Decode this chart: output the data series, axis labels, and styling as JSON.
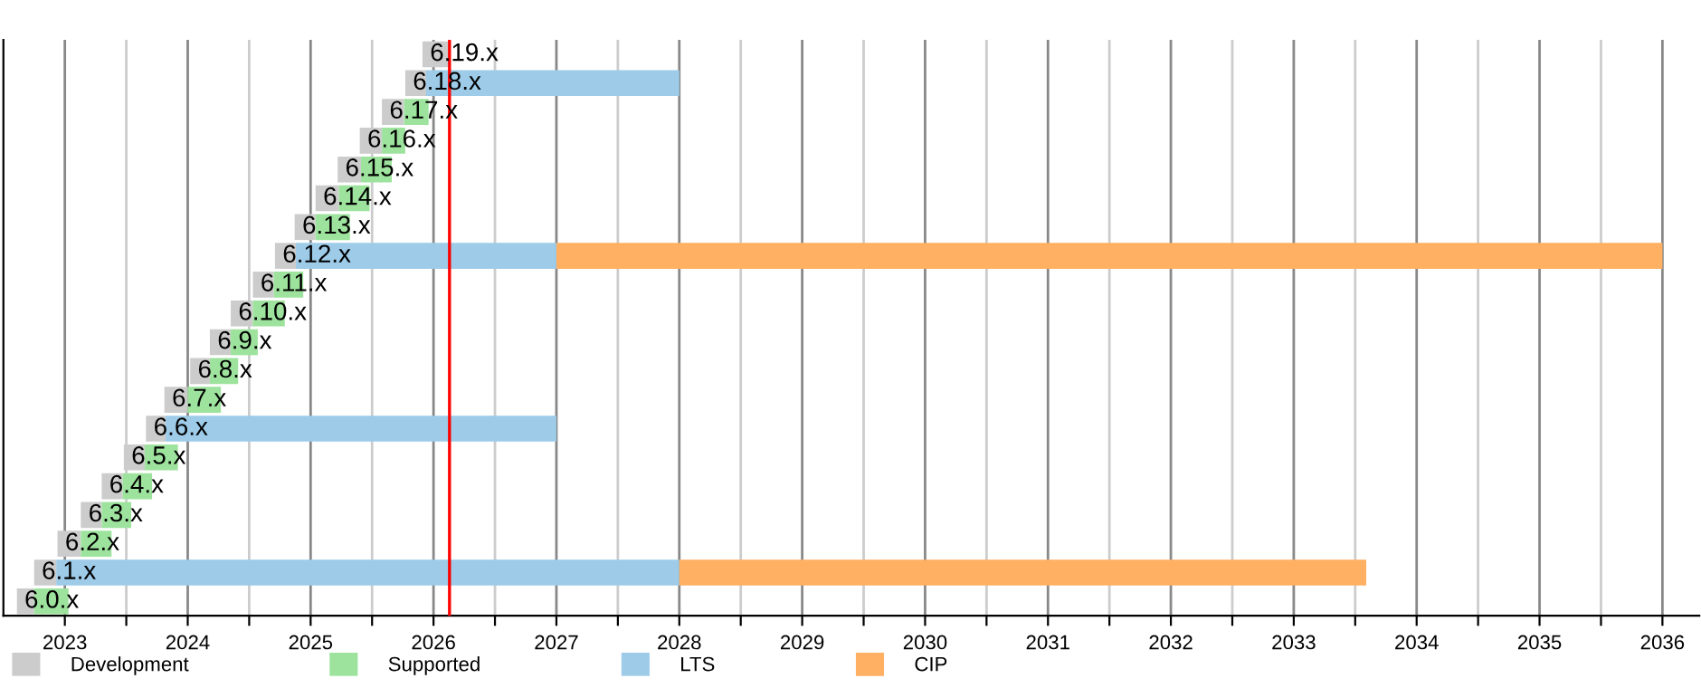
{
  "chart_data": {
    "type": "bar",
    "orientation": "horizontal",
    "categories": [
      "6.19.x",
      "6.18.x",
      "6.17.x",
      "6.16.x",
      "6.15.x",
      "6.14.x",
      "6.13.x",
      "6.12.x",
      "6.11.x",
      "6.10.x",
      "6.9.x",
      "6.8.x",
      "6.7.x",
      "6.6.x",
      "6.5.x",
      "6.4.x",
      "6.3.x",
      "6.2.x",
      "6.1.x",
      "6.0.x"
    ],
    "series": [
      {
        "name": "Development",
        "color": "#cccccc",
        "base": [
          2025.91,
          2025.77,
          2025.58,
          2025.4,
          2025.22,
          2025.04,
          2024.87,
          2024.71,
          2024.53,
          2024.35,
          2024.18,
          2024.02,
          2023.81,
          2023.66,
          2023.48,
          2023.3,
          2023.13,
          2022.94,
          2022.75,
          2022.61
        ],
        "values": [
          0.21,
          0.17,
          0.18,
          0.18,
          0.19,
          0.19,
          0.17,
          0.17,
          0.17,
          0.18,
          0.17,
          0.16,
          0.19,
          0.16,
          0.17,
          0.17,
          0.17,
          0.19,
          0.18,
          0.14
        ]
      },
      {
        "name": "Supported",
        "color": "#9de39d",
        "base": [
          null,
          null,
          2025.76,
          2025.58,
          2025.41,
          2025.23,
          2025.04,
          null,
          2024.7,
          2024.53,
          2024.35,
          2024.18,
          2024.0,
          null,
          2023.65,
          2023.47,
          2023.3,
          2023.13,
          null,
          2022.75
        ],
        "values": [
          null,
          null,
          0.2,
          0.19,
          0.25,
          0.25,
          0.28,
          null,
          0.24,
          0.26,
          0.22,
          0.23,
          0.27,
          null,
          0.27,
          0.24,
          0.24,
          0.25,
          null,
          0.28
        ]
      },
      {
        "name": "LTS",
        "color": "#9dcbe8",
        "base": [
          null,
          2025.94,
          null,
          null,
          null,
          null,
          null,
          2024.88,
          null,
          null,
          null,
          null,
          null,
          2023.82,
          null,
          null,
          null,
          null,
          2022.93,
          null
        ],
        "values": [
          null,
          2.06,
          null,
          null,
          null,
          null,
          null,
          2.12,
          null,
          null,
          null,
          null,
          null,
          3.18,
          null,
          null,
          null,
          null,
          5.07,
          null
        ]
      },
      {
        "name": "CIP",
        "color": "#ffb062",
        "base": [
          null,
          null,
          null,
          null,
          null,
          null,
          null,
          2027.0,
          null,
          null,
          null,
          null,
          null,
          null,
          null,
          null,
          null,
          null,
          2028.0,
          null
        ],
        "values": [
          null,
          null,
          null,
          null,
          null,
          null,
          null,
          9.0,
          null,
          null,
          null,
          null,
          null,
          null,
          null,
          null,
          null,
          null,
          5.59,
          null
        ]
      }
    ],
    "xlim": [
      2022.5,
      2036.3
    ],
    "xticks": [
      2023,
      {
        "value": 2023.5,
        "label": null
      },
      2024,
      {
        "value": 2024.5,
        "label": null
      },
      2025,
      {
        "value": 2025.5,
        "label": null
      },
      2026,
      {
        "value": 2026.5,
        "label": null
      },
      2027,
      {
        "value": 2027.5,
        "label": null
      },
      2028,
      {
        "value": 2028.5,
        "label": null
      },
      2029,
      {
        "value": 2029.5,
        "label": null
      },
      2030,
      {
        "value": 2030.5,
        "label": null
      },
      2031,
      {
        "value": 2031.5,
        "label": null
      },
      2032,
      {
        "value": 2032.5,
        "label": null
      },
      2033,
      {
        "value": 2033.5,
        "label": null
      },
      2034,
      {
        "value": 2034.5,
        "label": null
      },
      2035,
      {
        "value": 2035.5,
        "label": null
      },
      2036
    ],
    "ref_lines": [
      {
        "axis": "x",
        "value": 2026.13,
        "color": "#ff0000"
      }
    ],
    "grid": "x",
    "legend": "bottom",
    "tick_labels": "x"
  }
}
